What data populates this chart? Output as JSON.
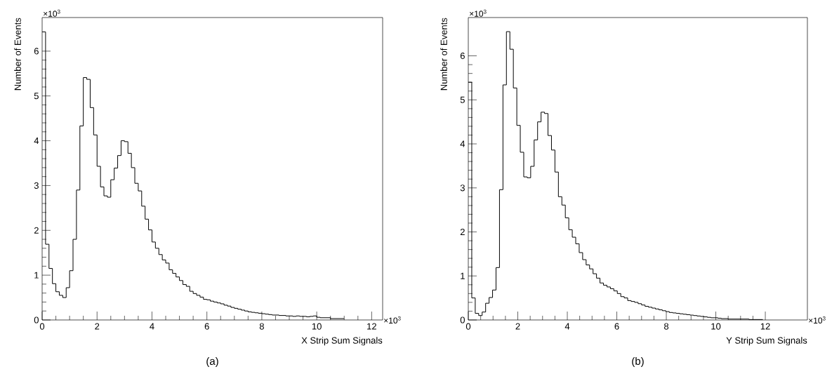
{
  "chart_data": [
    {
      "type": "histogram",
      "xlabel": "X Strip Sum Signals",
      "ylabel": "Number of Events",
      "color": "#000000",
      "annotations": [
        "×10$^{3}$",
        "×10$^{3}$",
        "(a)"
      ],
      "xlim": [
        0,
        12.4
      ],
      "ylim": [
        0,
        6.75
      ],
      "xticks": [
        0,
        2,
        4,
        6,
        8,
        10,
        12
      ],
      "yticks": [
        0,
        1,
        2,
        3,
        4,
        5,
        6
      ],
      "bins": [
        0,
        0.125,
        0.25,
        0.375,
        0.5,
        0.625,
        0.75,
        0.875,
        1,
        1.125,
        1.25,
        1.375,
        1.5,
        1.625,
        1.75,
        1.875,
        2,
        2.125,
        2.25,
        2.375,
        2.5,
        2.625,
        2.75,
        2.875,
        3,
        3.125,
        3.25,
        3.375,
        3.5,
        3.625,
        3.75,
        3.875,
        4,
        4.125,
        4.25,
        4.375,
        4.5,
        4.625,
        4.75,
        4.875,
        5,
        5.125,
        5.25,
        5.375,
        5.5,
        5.625,
        5.75,
        5.875,
        6,
        6.125,
        6.25,
        6.375,
        6.5,
        6.625,
        6.75,
        6.875,
        7,
        7.125,
        7.25,
        7.375,
        7.5,
        7.625,
        7.75,
        7.875,
        8,
        8.125,
        8.25,
        8.375,
        8.5,
        8.625,
        8.75,
        8.875,
        9,
        9.125,
        9.25,
        9.375,
        9.5,
        9.625,
        9.75,
        9.875,
        10,
        10.125,
        10.25,
        10.375,
        10.5,
        10.625,
        10.75,
        10.875,
        11
      ],
      "values": [
        6.43,
        1.69,
        1.15,
        0.81,
        0.63,
        0.55,
        0.5,
        0.72,
        1.1,
        1.8,
        2.9,
        4.33,
        5.41,
        5.37,
        4.74,
        4.13,
        3.43,
        2.97,
        2.77,
        2.74,
        3.13,
        3.39,
        3.67,
        4.0,
        3.98,
        3.72,
        3.4,
        3.05,
        2.88,
        2.54,
        2.25,
        2.01,
        1.74,
        1.6,
        1.46,
        1.34,
        1.27,
        1.12,
        1.04,
        0.96,
        0.88,
        0.79,
        0.75,
        0.64,
        0.59,
        0.55,
        0.51,
        0.46,
        0.45,
        0.42,
        0.4,
        0.38,
        0.36,
        0.33,
        0.31,
        0.28,
        0.26,
        0.24,
        0.22,
        0.2,
        0.18,
        0.17,
        0.16,
        0.15,
        0.14,
        0.13,
        0.12,
        0.11,
        0.11,
        0.1,
        0.1,
        0.09,
        0.09,
        0.08,
        0.09,
        0.08,
        0.08,
        0.07,
        0.08,
        0.09,
        0.06,
        0.05,
        0.05,
        0.05,
        0.03,
        0.03,
        0.03,
        0.03
      ]
    },
    {
      "type": "histogram",
      "xlabel": "Y Strip Sum Signals",
      "ylabel": "Number of Events",
      "color": "#000000",
      "annotations": [
        "×10$^{3}$",
        "×10$^{3}$",
        "(b)"
      ],
      "xlim": [
        0,
        13.7
      ],
      "ylim": [
        0,
        6.87
      ],
      "xticks": [
        0,
        2,
        4,
        6,
        8,
        10,
        12
      ],
      "yticks": [
        0,
        1,
        2,
        3,
        4,
        5,
        6
      ],
      "bins": [
        0,
        0.14,
        0.28,
        0.42,
        0.56,
        0.7,
        0.84,
        0.98,
        1.12,
        1.26,
        1.4,
        1.54,
        1.68,
        1.82,
        1.96,
        2.1,
        2.24,
        2.38,
        2.52,
        2.66,
        2.8,
        2.94,
        3.08,
        3.22,
        3.36,
        3.5,
        3.64,
        3.78,
        3.92,
        4.06,
        4.2,
        4.34,
        4.48,
        4.62,
        4.76,
        4.9,
        5.04,
        5.18,
        5.32,
        5.46,
        5.6,
        5.74,
        5.88,
        6.02,
        6.16,
        6.3,
        6.44,
        6.58,
        6.72,
        6.86,
        7,
        7.14,
        7.28,
        7.42,
        7.56,
        7.7,
        7.84,
        7.98,
        8.12,
        8.26,
        8.4,
        8.54,
        8.68,
        8.82,
        8.96,
        9.1,
        9.24,
        9.38,
        9.52,
        9.66,
        9.8,
        9.94,
        10.08,
        10.22,
        10.36,
        10.5,
        10.64,
        10.78,
        10.92,
        11.06,
        11.2,
        11.34,
        11.48,
        11.62,
        11.76,
        11.9
      ],
      "values": [
        5.4,
        0.5,
        0.15,
        0.1,
        0.18,
        0.38,
        0.51,
        0.68,
        1.19,
        2.96,
        5.34,
        6.55,
        6.15,
        5.27,
        4.42,
        3.81,
        3.25,
        3.23,
        3.49,
        4.09,
        4.5,
        4.72,
        4.69,
        4.19,
        3.86,
        3.36,
        2.8,
        2.61,
        2.32,
        2.05,
        1.88,
        1.73,
        1.53,
        1.37,
        1.25,
        1.16,
        1.05,
        0.95,
        0.84,
        0.79,
        0.75,
        0.71,
        0.66,
        0.6,
        0.53,
        0.5,
        0.44,
        0.42,
        0.4,
        0.37,
        0.34,
        0.31,
        0.29,
        0.27,
        0.25,
        0.23,
        0.21,
        0.19,
        0.17,
        0.16,
        0.15,
        0.14,
        0.13,
        0.12,
        0.11,
        0.1,
        0.09,
        0.08,
        0.07,
        0.06,
        0.05,
        0.05,
        0.04,
        0.03,
        0.03,
        0.02,
        0.02,
        0.02,
        0.02,
        0.02,
        0.02,
        0.01,
        0.01,
        0.01,
        0.01
      ]
    }
  ]
}
